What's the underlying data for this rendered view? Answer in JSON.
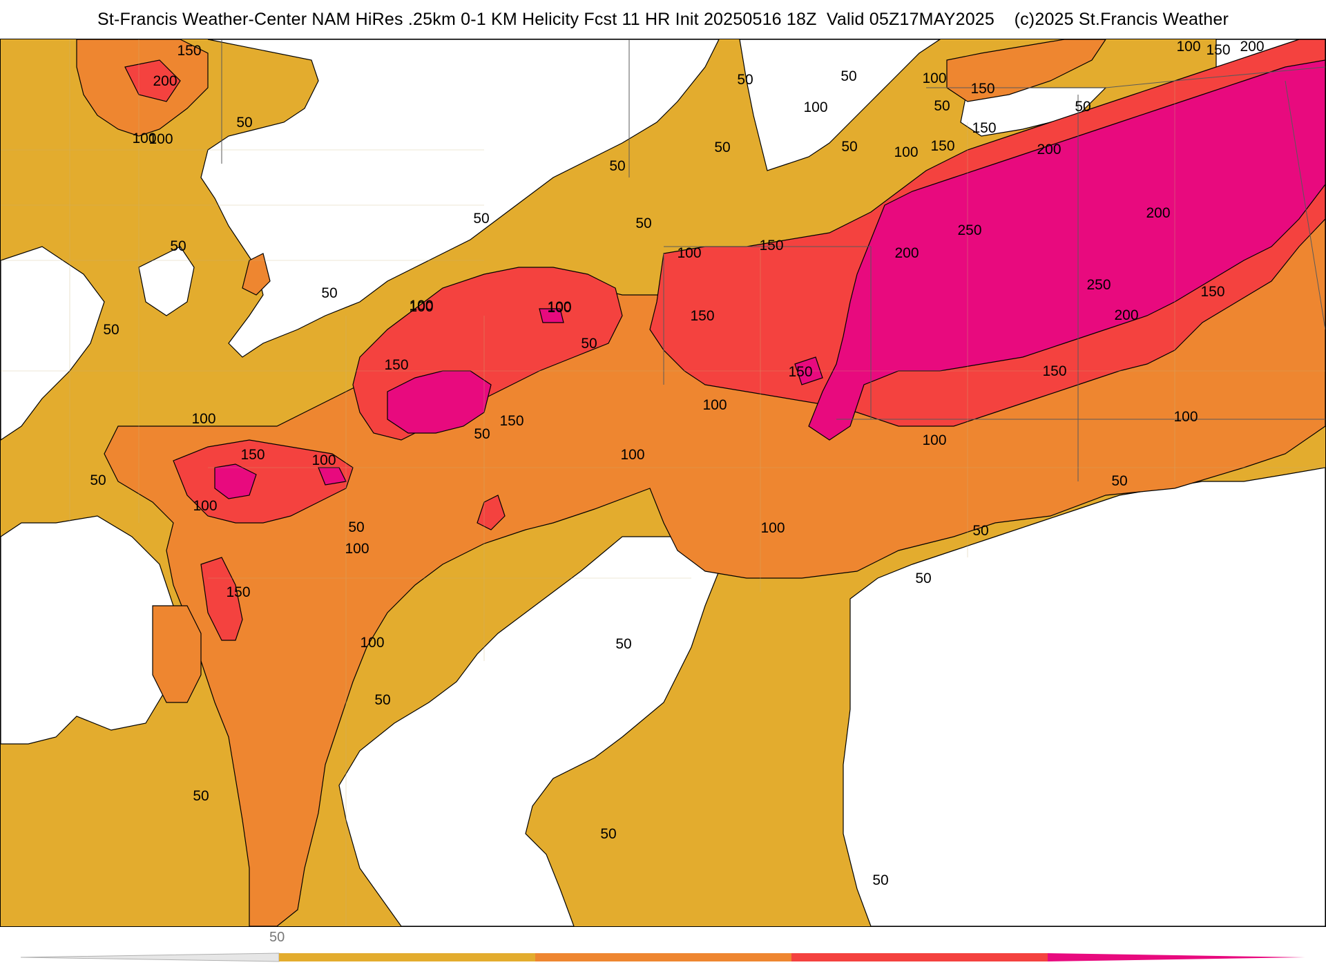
{
  "title": "St-Francis Weather-Center NAM HiRes .25km 0-1 KM Helicity Fcst 11 HR Init 20250516 18Z  Valid 05Z17MAY2025    (c)2025 St.Francis Weather",
  "colors": {
    "c50": "#e3ac2e",
    "c100": "#ee8630",
    "c150": "#f4423f",
    "c200": "#e80a7e",
    "c250": "#e8007d",
    "background": "#ffffff",
    "boundaries": "#9a9a9a"
  },
  "contour_labels": [
    "100",
    "150",
    "200",
    "50",
    "100",
    "50",
    "100",
    "150",
    "50",
    "100",
    "150",
    "100",
    "50",
    "50",
    "50",
    "50",
    "100",
    "200",
    "50",
    "150",
    "50",
    "100",
    "150",
    "250",
    "200",
    "50",
    "50",
    "50",
    "100",
    "150",
    "200",
    "250",
    "200",
    "150",
    "50",
    "100",
    "150",
    "100",
    "50",
    "100",
    "150",
    "200",
    "150",
    "100",
    "100",
    "100",
    "150",
    "150",
    "100",
    "50",
    "100",
    "100",
    "100",
    "50",
    "50",
    "150",
    "50",
    "100",
    "100",
    "150",
    "50",
    "50",
    "50",
    "50",
    "50",
    "100",
    "50",
    "50"
  ],
  "legend": {
    "tick_label": "50",
    "levels": [
      50,
      100,
      150,
      200,
      250
    ],
    "bins": [
      {
        "from": 50,
        "to": 100,
        "color": "#e3ac2e"
      },
      {
        "from": 100,
        "to": 150,
        "color": "#ee8630"
      },
      {
        "from": 150,
        "to": 200,
        "color": "#f4423f"
      },
      {
        "from": 200,
        "to": 250,
        "color": "#e80a7e"
      }
    ]
  }
}
